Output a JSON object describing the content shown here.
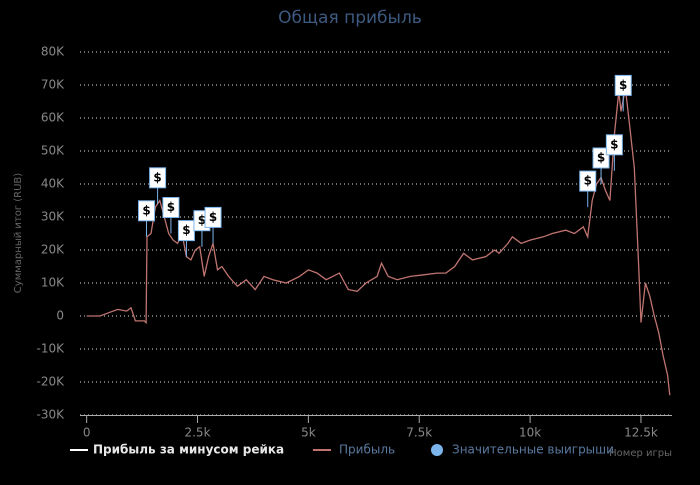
{
  "chart_data": {
    "type": "line",
    "title": "Общая прибыль",
    "y_axis_title": "Суммарный итог (RUB)",
    "x_axis_title": "Номер игры",
    "xlim": [
      -150,
      13200
    ],
    "ylim": [
      -30000,
      80000
    ],
    "xticks": [
      0,
      {
        "value": 2500,
        "label": "2.5k"
      },
      {
        "value": 5000,
        "label": "5k"
      },
      {
        "value": 7500,
        "label": "7.5k"
      },
      {
        "value": 10000,
        "label": "10k"
      },
      {
        "value": 12500,
        "label": "12.5k"
      }
    ],
    "yticks": [
      {
        "value": -30000,
        "label": "-30K"
      },
      {
        "value": -20000,
        "label": "-20K"
      },
      {
        "value": -10000,
        "label": "-10K"
      },
      0,
      {
        "value": 10000,
        "label": "10K"
      },
      {
        "value": 20000,
        "label": "20K"
      },
      {
        "value": 30000,
        "label": "30K"
      },
      {
        "value": 40000,
        "label": "40K"
      },
      {
        "value": 50000,
        "label": "50K"
      },
      {
        "value": 60000,
        "label": "60K"
      },
      {
        "value": 70000,
        "label": "70K"
      },
      {
        "value": 80000,
        "label": "80K"
      }
    ],
    "grid": true,
    "extra_legend": [
      {
        "name": "Прибыль за минусом рейка",
        "color": "#ffffff"
      }
    ],
    "series": [
      {
        "name": "Прибыль",
        "color": "#c07470",
        "x": [
          0,
          300,
          500,
          700,
          900,
          1000,
          1100,
          1300,
          1340,
          1360,
          1450,
          1550,
          1650,
          1750,
          1850,
          1950,
          2050,
          2150,
          2250,
          2350,
          2450,
          2550,
          2650,
          2750,
          2850,
          2950,
          3050,
          3200,
          3400,
          3600,
          3800,
          4000,
          4200,
          4500,
          4800,
          5000,
          5200,
          5400,
          5700,
          5900,
          6100,
          6300,
          6550,
          6650,
          6800,
          7000,
          7300,
          7600,
          7900,
          8100,
          8300,
          8500,
          8700,
          9000,
          9200,
          9300,
          9500,
          9600,
          9800,
          10000,
          10300,
          10500,
          10800,
          11000,
          11200,
          11300,
          11400,
          11500,
          11600,
          11700,
          11800,
          11900,
          12000,
          12050,
          12150,
          12250,
          12350,
          12450,
          12500,
          12600,
          12700,
          12800,
          12900,
          13000,
          13100,
          13150
        ],
        "values": [
          0,
          0,
          1000,
          2000,
          1500,
          2500,
          -1500,
          -1500,
          -2000,
          24000,
          25000,
          33000,
          35000,
          30000,
          25000,
          23000,
          22000,
          25000,
          18000,
          17000,
          20000,
          21000,
          12000,
          18000,
          22000,
          14000,
          15000,
          12000,
          9000,
          11000,
          8000,
          12000,
          11000,
          10000,
          12000,
          14000,
          13000,
          11000,
          13000,
          8000,
          7500,
          10000,
          12000,
          16000,
          12000,
          11000,
          12000,
          12500,
          13000,
          13000,
          15000,
          19000,
          17000,
          18000,
          20000,
          19000,
          22000,
          24000,
          22000,
          23000,
          24000,
          25000,
          26000,
          25000,
          27000,
          24000,
          35000,
          40000,
          42000,
          38000,
          35000,
          55000,
          68000,
          62000,
          69000,
          57000,
          45000,
          15000,
          -2000,
          10000,
          6000,
          0,
          -5000,
          -12000,
          -18000,
          -24000
        ]
      }
    ],
    "flags": {
      "name": "Значительные выигрыши",
      "color": "#7cb5ec",
      "text": "$",
      "x": [
        1350,
        1600,
        1900,
        2250,
        2600,
        2850,
        11300,
        11600,
        11900,
        12100
      ],
      "values": [
        24000,
        34000,
        25000,
        18000,
        21000,
        22000,
        33000,
        40000,
        44000,
        62000
      ]
    }
  }
}
